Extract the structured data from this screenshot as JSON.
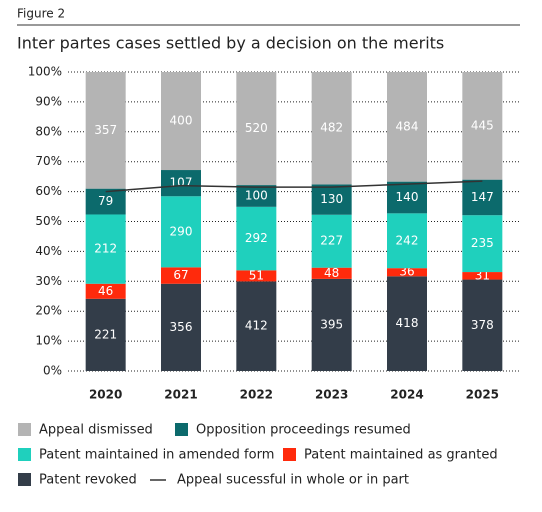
{
  "chart_data": {
    "type": "percent_stacked_bar",
    "figure_label": "Figure 2",
    "title": "Inter partes cases settled by a decision on the merits",
    "categories": [
      "2020",
      "2021",
      "2022",
      "2023",
      "2024",
      "2025"
    ],
    "series": [
      {
        "name": "Patent revoked",
        "color": "#333d49",
        "values": [
          221,
          356,
          412,
          395,
          418,
          378
        ]
      },
      {
        "name": "Patent maintained as granted",
        "color": "#ff2a0c",
        "values": [
          46,
          67,
          51,
          48,
          36,
          31
        ]
      },
      {
        "name": "Patent maintained in amended form",
        "color": "#1fd0bd",
        "values": [
          212,
          290,
          292,
          227,
          242,
          235
        ]
      },
      {
        "name": "Opposition proceedings resumed",
        "color": "#0c6a6c",
        "values": [
          79,
          107,
          100,
          130,
          140,
          147
        ]
      },
      {
        "name": "Appeal dismissed",
        "color": "#b4b4b4",
        "values": [
          357,
          400,
          520,
          482,
          484,
          445
        ]
      }
    ],
    "line": {
      "name": "Appeal sucessful in whole or in part",
      "color": "#333333",
      "values": [
        60,
        62,
        61.5,
        61.5,
        62.5,
        63.5
      ]
    },
    "ylim": [
      0,
      100
    ],
    "yticks": [
      {
        "value": 0,
        "label": "0%"
      },
      {
        "value": 10,
        "label": "10%"
      },
      {
        "value": 20,
        "label": "20%"
      },
      {
        "value": 30,
        "label": "30%"
      },
      {
        "value": 40,
        "label": "40%"
      },
      {
        "value": 50,
        "label": "50%"
      },
      {
        "value": 60,
        "label": "60%"
      },
      {
        "value": 70,
        "label": "70%"
      },
      {
        "value": 80,
        "label": "80%"
      },
      {
        "value": 90,
        "label": "90%"
      },
      {
        "value": 100,
        "label": "100%"
      }
    ],
    "grid": true
  }
}
